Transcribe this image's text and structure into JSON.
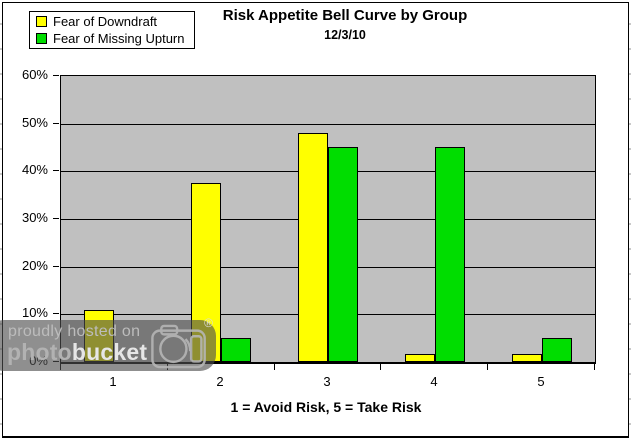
{
  "chart_data": {
    "type": "bar",
    "title": "Risk Appetite Bell Curve by Group",
    "subtitle": "12/3/10",
    "categories": [
      "1",
      "2",
      "3",
      "4",
      "5"
    ],
    "series": [
      {
        "name": "Fear of Downdraft",
        "color": "#FFFF00",
        "values": [
          11,
          37.5,
          48,
          1.75,
          1.75
        ]
      },
      {
        "name": "Fear of Missing Upturn",
        "color": "#00DD00",
        "values": [
          0,
          5,
          45,
          45,
          5
        ]
      }
    ],
    "xlabel": "1 = Avoid Risk, 5 = Take Risk",
    "ylabel": "",
    "ylim": [
      0,
      60
    ],
    "ytick_labels": [
      "0%",
      "10%",
      "20%",
      "30%",
      "40%",
      "50%",
      "60%"
    ],
    "grid": true,
    "legend_position": "top-left",
    "plot_background": "#C0C0C0",
    "gridline_color": "#000000"
  },
  "watermark": {
    "line1": "proudly hosted on",
    "brand_part1": "photo",
    "brand_part2": "bucket",
    "registered_symbol": "®",
    "camera_icon": "camera-icon"
  }
}
